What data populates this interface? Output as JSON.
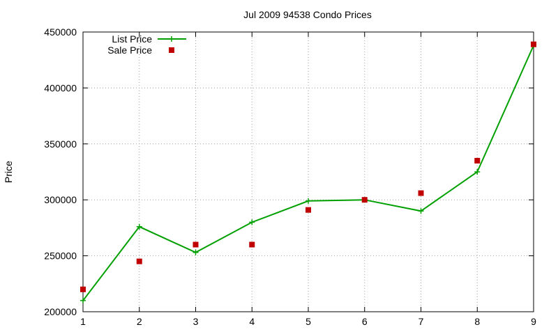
{
  "chart_data": {
    "type": "line",
    "title": "Jul 2009 94538 Condo Prices",
    "xlabel": "",
    "ylabel": "Price",
    "x": [
      1,
      2,
      3,
      4,
      5,
      6,
      7,
      8,
      9
    ],
    "xlim": [
      1,
      9
    ],
    "ylim": [
      200000,
      450000
    ],
    "xticks": [
      "1",
      "2",
      "3",
      "4",
      "5",
      "6",
      "7",
      "8",
      "9"
    ],
    "yticks": [
      "200000",
      "250000",
      "300000",
      "350000",
      "400000",
      "450000"
    ],
    "grid": true,
    "legend_position": "top-left",
    "series": [
      {
        "name": "List Price",
        "style": "line-with-plus-markers",
        "color": "#00a000",
        "values": [
          210000,
          276000,
          253000,
          280000,
          299000,
          300000,
          290000,
          325000,
          438000
        ]
      },
      {
        "name": "Sale Price",
        "style": "square-markers",
        "color": "#c00000",
        "values": [
          220000,
          245000,
          260000,
          260000,
          291000,
          300000,
          306000,
          335000,
          439000
        ]
      }
    ]
  }
}
